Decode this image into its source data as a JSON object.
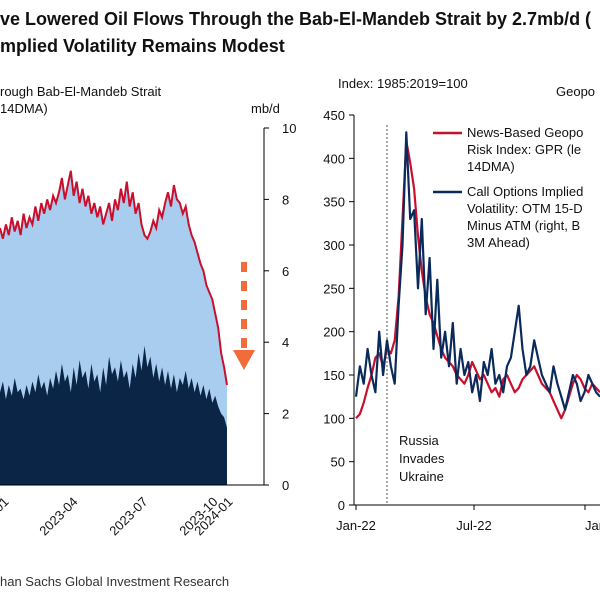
{
  "title_lines": [
    "ve Lowered Oil Flows Through the Bab-El-Mandeb Strait by 2.7mb/d (",
    "mplied Volatility Remains Modest"
  ],
  "footer": "han Sachs Global Investment Research",
  "chart_data": [
    {
      "type": "area",
      "title_lines": [
        "rough Bab-El-Mandeb Strait",
        "14DMA)"
      ],
      "ylabel": "mb/d",
      "ylim": [
        0,
        10
      ],
      "yticks": [
        0,
        2,
        4,
        6,
        8,
        10
      ],
      "xticks": [
        "01",
        "2023-04",
        "2023-07",
        "2023-10",
        "2024-01"
      ],
      "colors": {
        "total_line": "#c8102e",
        "total_fill": "#a9cdee",
        "lower_fill": "#0b2546",
        "arrow": "#f26b3a"
      },
      "series": [
        {
          "name": "total",
          "values": [
            7.2,
            6.9,
            7.3,
            7.0,
            7.5,
            7.1,
            7.4,
            7.0,
            7.6,
            7.2,
            7.5,
            7.3,
            7.8,
            7.4,
            7.9,
            7.6,
            8.0,
            7.7,
            8.1,
            7.9,
            8.2,
            8.6,
            8.0,
            8.4,
            8.8,
            8.1,
            8.5,
            7.9,
            8.3,
            7.8,
            8.1,
            7.6,
            7.9,
            7.5,
            7.8,
            7.3,
            7.6,
            7.9,
            7.4,
            8.0,
            7.7,
            8.3,
            7.9,
            8.5,
            7.8,
            8.2,
            7.6,
            7.9,
            7.3,
            7.0,
            6.9,
            7.1,
            7.4,
            7.2,
            7.7,
            7.5,
            7.9,
            8.2,
            7.8,
            8.4,
            8.0,
            7.9,
            7.6,
            7.8,
            7.3,
            7.0,
            6.8,
            6.5,
            6.2,
            6.0,
            5.6,
            5.4,
            5.2,
            4.8,
            4.4,
            3.7,
            3.3,
            2.8
          ]
        },
        {
          "name": "lower",
          "values": [
            2.6,
            2.9,
            2.4,
            2.8,
            2.5,
            3.0,
            2.6,
            2.7,
            2.4,
            2.8,
            2.5,
            2.9,
            2.6,
            3.1,
            2.7,
            2.9,
            2.5,
            3.0,
            2.7,
            3.2,
            2.8,
            3.4,
            2.9,
            3.1,
            2.6,
            3.3,
            2.8,
            3.5,
            3.0,
            3.2,
            2.7,
            3.4,
            2.9,
            3.1,
            2.6,
            3.3,
            2.8,
            3.6,
            3.1,
            3.3,
            2.9,
            3.5,
            3.0,
            3.2,
            2.7,
            3.4,
            3.0,
            3.7,
            3.2,
            3.9,
            3.3,
            3.6,
            3.0,
            3.4,
            2.9,
            3.3,
            2.8,
            3.2,
            2.7,
            3.1,
            2.6,
            3.0,
            2.8,
            3.2,
            2.7,
            3.0,
            2.6,
            2.9,
            2.5,
            2.8,
            2.4,
            2.7,
            2.3,
            2.5,
            2.2,
            2.0,
            1.9,
            1.6
          ]
        }
      ]
    },
    {
      "type": "line",
      "title_lines": [
        "Index: 1985:2019=100",
        "Geopo"
      ],
      "ylim": [
        0,
        450
      ],
      "yticks": [
        0,
        50,
        100,
        150,
        200,
        250,
        300,
        350,
        400,
        450
      ],
      "xticks": [
        "Jan-22",
        "Jul-22",
        "Jan-"
      ],
      "annotation": [
        "Russia",
        "Invades",
        "Ukraine"
      ],
      "colors": {
        "gpr": "#c8102e",
        "options": "#0b2a5c",
        "marker": "#555555"
      },
      "legend": [
        {
          "key": "gpr",
          "lines": [
            "News-Based Geopo",
            "Risk Index: GPR (le",
            "14DMA)"
          ]
        },
        {
          "key": "options",
          "lines": [
            "Call Options Implied",
            "Volatility: OTM 15-D",
            "Minus ATM (right, B",
            "3M Ahead)"
          ]
        }
      ],
      "series": [
        {
          "name": "gpr",
          "values": [
            100,
            105,
            118,
            135,
            150,
            170,
            175,
            160,
            180,
            175,
            190,
            240,
            330,
            420,
            395,
            365,
            310,
            270,
            240,
            220,
            210,
            195,
            180,
            170,
            165,
            160,
            150,
            145,
            140,
            150,
            165,
            155,
            145,
            150,
            140,
            130,
            135,
            125,
            145,
            150,
            140,
            130,
            135,
            145,
            150,
            155,
            160,
            150,
            140,
            135,
            130,
            120,
            110,
            100,
            110,
            125,
            140,
            150,
            145,
            135,
            130,
            140,
            135,
            130
          ]
        },
        {
          "name": "options",
          "values": [
            125,
            160,
            140,
            180,
            150,
            130,
            200,
            150,
            190,
            160,
            140,
            230,
            300,
            430,
            330,
            340,
            250,
            330,
            220,
            285,
            180,
            260,
            170,
            200,
            160,
            210,
            140,
            180,
            150,
            165,
            130,
            150,
            120,
            165,
            150,
            180,
            140,
            150,
            130,
            160,
            170,
            200,
            230,
            180,
            150,
            160,
            190,
            170,
            150,
            140,
            130,
            160,
            140,
            125,
            110,
            130,
            150,
            140,
            120,
            130,
            150,
            140,
            130,
            125
          ]
        }
      ]
    }
  ]
}
